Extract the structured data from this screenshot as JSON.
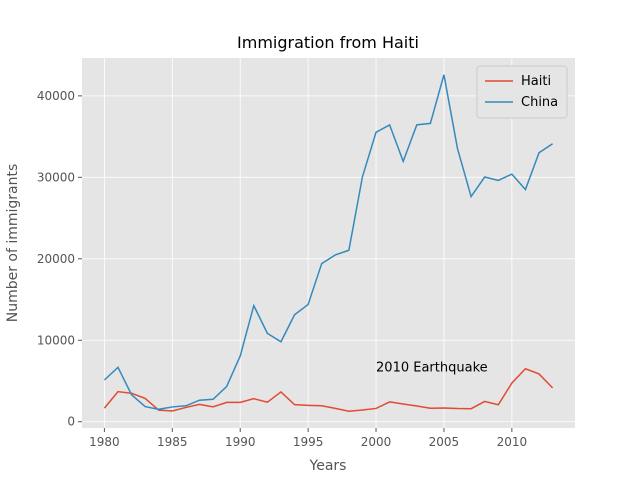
{
  "chart_data": {
    "type": "line",
    "title": "Immigration from Haiti",
    "x_label": "Years",
    "y_label": "Number of immigrants",
    "annotation": "2010 Earthquake",
    "x": [
      1980,
      1981,
      1982,
      1983,
      1984,
      1985,
      1986,
      1987,
      1988,
      1989,
      1990,
      1991,
      1992,
      1993,
      1994,
      1995,
      1996,
      1997,
      1998,
      1999,
      2000,
      2001,
      2002,
      2003,
      2004,
      2005,
      2006,
      2007,
      2008,
      2009,
      2010,
      2011,
      2012,
      2013
    ],
    "series": [
      {
        "name": "Haiti",
        "color": "#E24A33",
        "values": [
          1666,
          3692,
          3498,
          2860,
          1418,
          1321,
          1753,
          2132,
          1829,
          2377,
          2379,
          2829,
          2399,
          3655,
          2100,
          2014,
          1955,
          1645,
          1295,
          1439,
          1631,
          2433,
          2174,
          1930,
          1652,
          1682,
          1619,
          1598,
          2491,
          2080,
          4744,
          6503,
          5868,
          4152
        ]
      },
      {
        "name": "China",
        "color": "#348ABD",
        "values": [
          5123,
          6682,
          3308,
          1863,
          1527,
          1816,
          1960,
          2643,
          2758,
          4323,
          8076,
          14255,
          10846,
          9817,
          13128,
          14398,
          19415,
          20475,
          21049,
          30069,
          35529,
          36434,
          31961,
          36439,
          36619,
          42584,
          33518,
          27642,
          30037,
          29622,
          30391,
          28502,
          33024,
          34129
        ]
      }
    ],
    "xlim": [
      1978.35,
      2014.65
    ],
    "xticks": [
      1980,
      1985,
      1990,
      1995,
      2000,
      2005,
      2010
    ],
    "ylim": [
      -769,
      44648
    ],
    "yticks": [
      0,
      10000,
      20000,
      30000,
      40000
    ],
    "grid": true,
    "legend": "upper-right"
  }
}
